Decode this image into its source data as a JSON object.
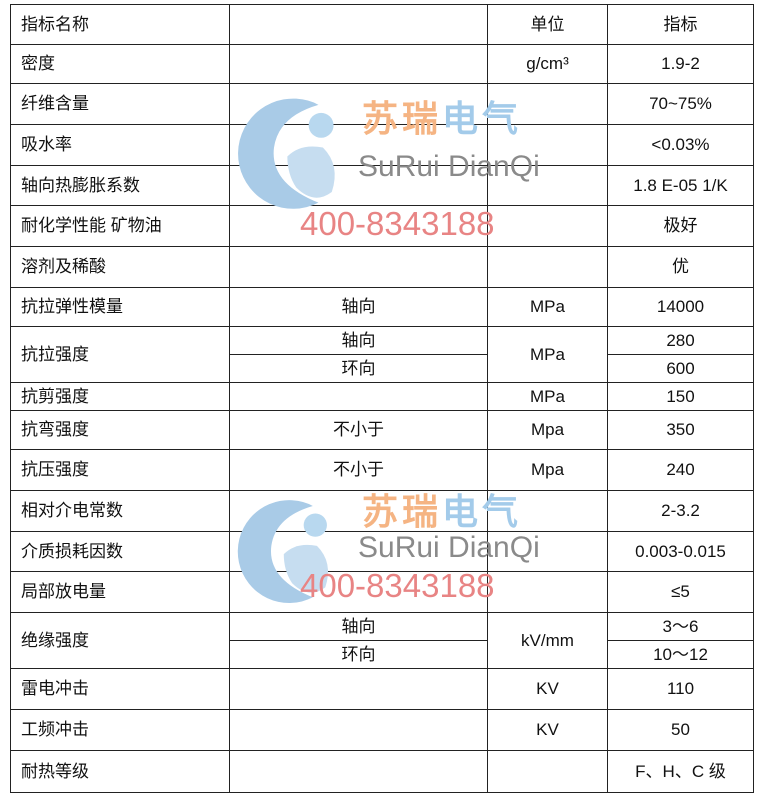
{
  "table": {
    "header": [
      "指标名称",
      "",
      "单位",
      "指标"
    ],
    "rows": [
      {
        "name": "密度",
        "cond": "",
        "unit": "g/cm³",
        "value": "1.9-2"
      },
      {
        "name": "纤维含量",
        "cond": "",
        "unit": "",
        "value": "70~75%"
      },
      {
        "name": "吸水率",
        "cond": "",
        "unit": "",
        "value": "<0.03%"
      },
      {
        "name": "轴向热膨胀系数",
        "cond": "",
        "unit": "",
        "value": "1.8 E-05 1/K"
      },
      {
        "name": "耐化学性能 矿物油",
        "cond": "",
        "unit": "",
        "value": "极好"
      },
      {
        "name": "溶剂及稀酸",
        "cond": "",
        "unit": "",
        "value": "优"
      },
      {
        "name": "抗拉弹性模量",
        "cond": "轴向",
        "unit": "MPa",
        "value": "14000"
      },
      {
        "name": "抗拉强度",
        "cond": "轴向",
        "cond2": "环向",
        "unit": "MPa",
        "value": "280",
        "value2": "600"
      },
      {
        "name": "抗剪强度",
        "cond": "",
        "unit": "MPa",
        "value": "150"
      },
      {
        "name": "抗弯强度",
        "cond": "不小于",
        "unit": "Mpa",
        "value": "350"
      },
      {
        "name": "抗压强度",
        "cond": "不小于",
        "unit": "Mpa",
        "value": "240"
      },
      {
        "name": "相对介电常数",
        "cond": "",
        "unit": "",
        "value": "2-3.2"
      },
      {
        "name": "介质损耗因数",
        "cond": "",
        "unit": "",
        "value": "0.003-0.015"
      },
      {
        "name": "局部放电量",
        "cond": "",
        "unit": "",
        "value": "≤5"
      },
      {
        "name": "绝缘强度",
        "cond": "轴向",
        "cond2": "环向",
        "unit": "kV/mm",
        "value": "3～6",
        "value2": "10～12"
      },
      {
        "name": "雷电冲击",
        "cond": "",
        "unit": "KV",
        "value": "110"
      },
      {
        "name": "工频冲击",
        "cond": "",
        "unit": "KV",
        "value": "50"
      },
      {
        "name": "耐热等级",
        "cond": "",
        "unit": "",
        "value": "F、H、C 级"
      }
    ]
  },
  "watermark": {
    "cn": "苏瑞电气",
    "en": "SuRui DianQi",
    "tel": "400-8343188",
    "colors": {
      "logo": "#6fa9d6",
      "cn_orange": "#f0a060",
      "cn_blue": "#7fb8e0",
      "tel": "#e06060"
    }
  }
}
